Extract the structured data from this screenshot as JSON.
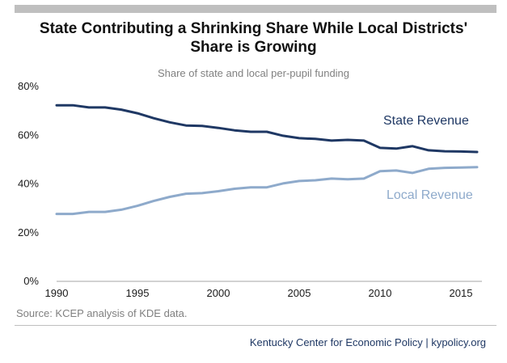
{
  "chart_data": {
    "type": "line",
    "title": "State Contributing a Shrinking Share While Local Districts' Share is Growing",
    "title_lines": [
      "State Contributing a Shrinking Share While Local Districts'",
      "Share is Growing"
    ],
    "subtitle": "Share of state and local per-pupil funding",
    "x": [
      1990,
      1991,
      1992,
      1993,
      1994,
      1995,
      1996,
      1997,
      1998,
      1999,
      2000,
      2001,
      2002,
      2003,
      2004,
      2005,
      2006,
      2007,
      2008,
      2009,
      2010,
      2011,
      2012,
      2013,
      2014,
      2015,
      2016
    ],
    "series": [
      {
        "name": "State Revenue",
        "color": "#1f3864",
        "values": [
          72.3,
          72.3,
          71.4,
          71.4,
          70.5,
          69.0,
          67.0,
          65.3,
          64.0,
          63.8,
          63.0,
          62.0,
          61.4,
          61.4,
          59.8,
          58.8,
          58.5,
          57.8,
          58.1,
          57.8,
          54.8,
          54.5,
          55.5,
          53.8,
          53.4,
          53.3,
          53.1
        ]
      },
      {
        "name": "Local Revenue",
        "color": "#8eaacb",
        "values": [
          27.7,
          27.7,
          28.5,
          28.5,
          29.4,
          31.0,
          33.0,
          34.7,
          36.0,
          36.2,
          37.0,
          38.0,
          38.6,
          38.6,
          40.2,
          41.2,
          41.5,
          42.2,
          41.9,
          42.2,
          45.2,
          45.5,
          44.5,
          46.2,
          46.6,
          46.7,
          46.9
        ]
      }
    ],
    "x_ticks": [
      "1990",
      "1995",
      "2000",
      "2005",
      "2010",
      "2015"
    ],
    "y_ticks": [
      "0%",
      "20%",
      "40%",
      "60%",
      "80%"
    ],
    "xlim": [
      1990,
      2016
    ],
    "ylim": [
      0,
      80
    ],
    "xlabel": "",
    "ylabel": "",
    "grid": false
  },
  "source": "Source: KCEP analysis of KDE data.",
  "footer": "Kentucky Center for Economic Policy | kypolicy.org"
}
